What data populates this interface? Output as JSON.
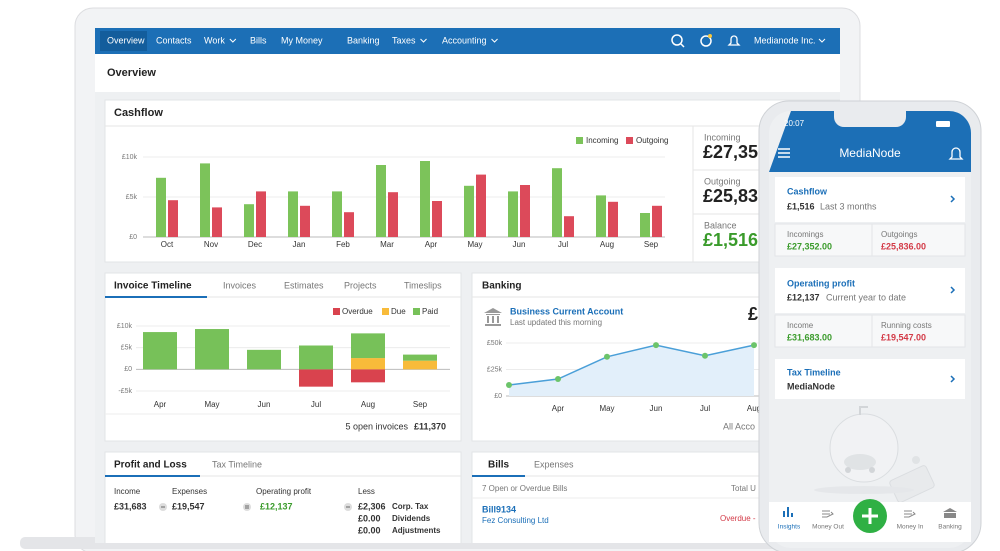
{
  "nav": {
    "items": [
      "Overview",
      "Contacts",
      "Work",
      "Bills",
      "My Money",
      "Banking",
      "Taxes",
      "Accounting"
    ],
    "account": "Medianode Inc."
  },
  "header": {
    "title": "Overview"
  },
  "cashflow": {
    "title": "Cashflow",
    "chart": {
      "type": "bar",
      "categories": [
        "Oct",
        "Nov",
        "Dec",
        "Jan",
        "Feb",
        "Mar",
        "Apr",
        "May",
        "Jun",
        "Jul",
        "Aug",
        "Sep"
      ],
      "series": [
        {
          "name": "Incoming",
          "color": "#7cc35a",
          "values": [
            7.4,
            9.2,
            4.1,
            5.7,
            5.7,
            9.0,
            9.5,
            6.4,
            5.7,
            8.6,
            5.2,
            3.0
          ]
        },
        {
          "name": "Outgoing",
          "color": "#dc4a5a",
          "values": [
            4.6,
            3.7,
            5.7,
            3.9,
            3.1,
            5.6,
            4.5,
            7.8,
            6.5,
            2.6,
            4.4,
            3.9
          ]
        }
      ],
      "ylim": [
        0,
        10
      ],
      "yticks": [
        {
          "value": 0,
          "label": "£0"
        },
        {
          "value": 5,
          "label": "£5k"
        },
        {
          "value": 10,
          "label": "£10k"
        }
      ],
      "grid": true
    },
    "summary": [
      {
        "label": "Incoming",
        "value": "£27,35"
      },
      {
        "label": "Outgoing",
        "value": "£25,83"
      },
      {
        "label": "Balance",
        "value": "£1,516"
      }
    ]
  },
  "invoices": {
    "tabs": [
      "Invoice Timeline",
      "Invoices",
      "Estimates",
      "Projects",
      "Timeslips"
    ],
    "chart": {
      "type": "stacked_bar",
      "categories": [
        "Apr",
        "May",
        "Jun",
        "Jul",
        "Aug",
        "Sep"
      ],
      "series": [
        {
          "name": "Overdue",
          "color": "#d9434e",
          "values": [
            0,
            0,
            0,
            -4.0,
            -3.0,
            0
          ]
        },
        {
          "name": "Due",
          "color": "#f8bb3a",
          "values": [
            0,
            0,
            0,
            0,
            2.6,
            2.0
          ]
        },
        {
          "name": "Paid",
          "color": "#77c159",
          "values": [
            8.6,
            9.3,
            4.5,
            5.5,
            5.7,
            1.4
          ]
        }
      ],
      "ylim": [
        -5,
        10
      ],
      "yticks": [
        {
          "value": -5,
          "label": "-£5k"
        },
        {
          "value": 0,
          "label": "£0"
        },
        {
          "value": 5,
          "label": "£5k"
        },
        {
          "value": 10,
          "label": "£10k"
        }
      ]
    },
    "footer": {
      "label": "5 open invoices",
      "value": "£11,370"
    }
  },
  "banking": {
    "title": "Banking",
    "account": "Business Current Account",
    "updated": "Last updated this morning",
    "balance": "£",
    "chart": {
      "type": "area",
      "categories": [
        null,
        "Apr",
        "May",
        "Jun",
        "Jul",
        "Aug"
      ],
      "values": [
        10.4,
        16,
        37,
        48,
        38,
        48
      ],
      "color": "#4a9fd8",
      "ylim": [
        0,
        50
      ],
      "yticks": [
        {
          "value": 0,
          "label": "£0"
        },
        {
          "value": 25,
          "label": "£25k"
        },
        {
          "value": 50,
          "label": "£50k"
        }
      ]
    },
    "footer": "All Acco"
  },
  "profit_loss": {
    "tabs": [
      "Profit and Loss",
      "Tax Timeline"
    ],
    "columns": [
      {
        "label": "Income",
        "value": "£31,683"
      },
      {
        "label": "Expenses",
        "value": "£19,547"
      },
      {
        "label": "Operating profit",
        "value": "£12,137"
      }
    ],
    "less": {
      "label": "Less",
      "rows": [
        {
          "value": "£2,306",
          "label": "Corp. Tax"
        },
        {
          "value": "£0.00",
          "label": "Dividends"
        },
        {
          "value": "£0.00",
          "label": "Adjustments"
        }
      ]
    }
  },
  "bills": {
    "tabs": [
      "Bills",
      "Expenses"
    ],
    "summary": "7 Open or Overdue Bills",
    "total": "Total U",
    "rows": [
      {
        "id": "Bill9134",
        "contact": "Fez Consulting Ltd",
        "status": "Overdue -"
      }
    ]
  },
  "phone": {
    "time": "20:07",
    "title": "MediaNode",
    "cashflow": {
      "title": "Cashflow",
      "value": "£1,516",
      "period": "Last 3 months",
      "stats": [
        {
          "label": "Incomings",
          "value": "£27,352.00"
        },
        {
          "label": "Outgoings",
          "value": "£25,836.00"
        }
      ]
    },
    "profit": {
      "title": "Operating profit",
      "value": "£12,137",
      "period": "Current year to date",
      "stats": [
        {
          "label": "Income",
          "value": "£31,683.00"
        },
        {
          "label": "Running costs",
          "value": "£19,547.00"
        }
      ]
    },
    "tax": {
      "title": "Tax Timeline",
      "name": "MediaNode"
    },
    "nav": [
      "Insights",
      "Money Out",
      "Money In",
      "Banking"
    ]
  }
}
